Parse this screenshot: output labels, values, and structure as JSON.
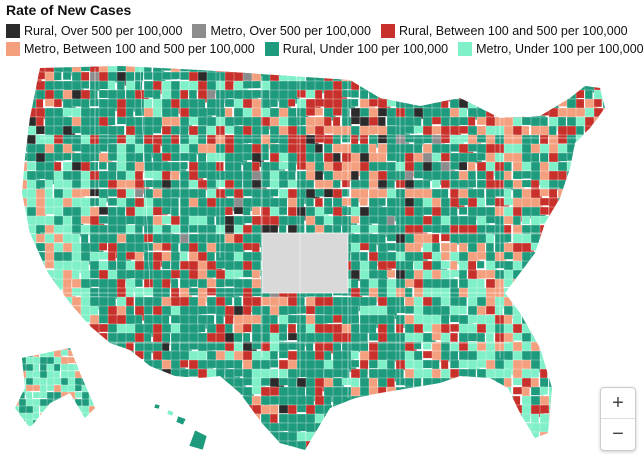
{
  "title": "Rate of New Cases",
  "legend": [
    {
      "label": "Rural, Over 500 per 100,000",
      "color": "#2b2b2b"
    },
    {
      "label": "Metro, Over 500 per 100,000",
      "color": "#8c8c8c"
    },
    {
      "label": "Rural, Between 100 and 500 per 100,000",
      "color": "#c8312b"
    },
    {
      "label": "Metro, Between 100 and 500 per 100,000",
      "color": "#f4a07f"
    },
    {
      "label": "Rural, Under 100 per 100,000",
      "color": "#1e9a7c"
    },
    {
      "label": "Metro, Under 100 per 100,000",
      "color": "#7ff0c8"
    }
  ],
  "no_data_color": "#d9d9d9",
  "zoom": {
    "in_label": "+",
    "out_label": "−"
  }
}
